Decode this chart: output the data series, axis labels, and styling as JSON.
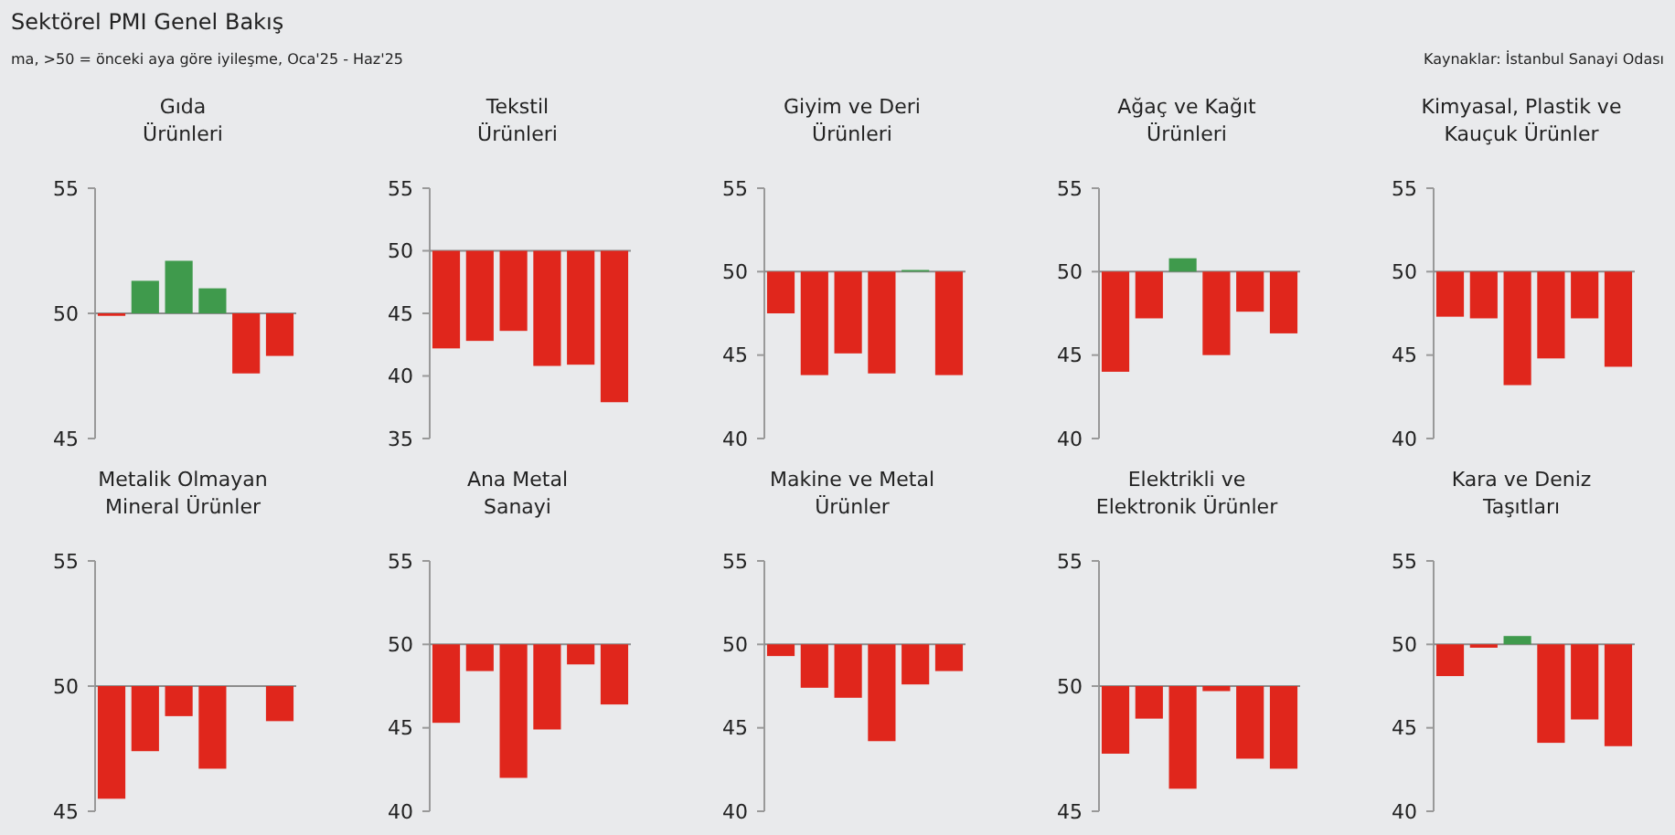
{
  "chart_data": [
    {
      "type": "other",
      "title": "Sektörel PMI Genel Bakış",
      "subtitle": "ma, >50 = önceki aya göre iyileşme, Oca'25 - Haz'25",
      "annotations": [
        "Kaynaklar: İstanbul Sanayi Odası"
      ]
    },
    {
      "type": "bar",
      "title": "Gıda\nÜrünleri",
      "categories": [
        null,
        null,
        null,
        null,
        null,
        null
      ],
      "base": [
        50,
        50,
        50,
        50,
        50,
        50
      ],
      "values": [
        -0.1,
        1.3,
        2.1,
        1.0,
        -2.4,
        -1.7
      ],
      "colors": [
        "#e0261c",
        "#3f9a4c",
        "#3f9a4c",
        "#3f9a4c",
        "#e0261c",
        "#e0261c"
      ],
      "ylim": [
        45,
        55
      ],
      "yticks": [
        45,
        50,
        55
      ],
      "ref_lines": [
        {
          "axis": "y",
          "value": 50,
          "color": "#8c8c8c"
        }
      ]
    },
    {
      "type": "bar",
      "title": "Tekstil\nÜrünleri",
      "categories": [
        null,
        null,
        null,
        null,
        null,
        null
      ],
      "base": [
        50,
        50,
        50,
        50,
        50,
        50
      ],
      "values": [
        -7.8,
        -7.2,
        -6.4,
        -9.2,
        -9.1,
        -12.1
      ],
      "colors": [
        "#e0261c",
        "#e0261c",
        "#e0261c",
        "#e0261c",
        "#e0261c",
        "#e0261c"
      ],
      "ylim": [
        35,
        55
      ],
      "yticks": [
        35,
        40,
        45,
        50,
        55
      ],
      "ref_lines": [
        {
          "axis": "y",
          "value": 50,
          "color": "#8c8c8c"
        }
      ]
    },
    {
      "type": "bar",
      "title": "Giyim ve Deri\nÜrünleri",
      "categories": [
        null,
        null,
        null,
        null,
        null,
        null
      ],
      "base": [
        50,
        50,
        50,
        50,
        50,
        50
      ],
      "values": [
        -2.5,
        -6.2,
        -4.9,
        -6.1,
        0.1,
        -6.2
      ],
      "colors": [
        "#e0261c",
        "#e0261c",
        "#e0261c",
        "#e0261c",
        "#3f9a4c",
        "#e0261c"
      ],
      "ylim": [
        40,
        55
      ],
      "yticks": [
        40,
        45,
        50,
        55
      ],
      "ref_lines": [
        {
          "axis": "y",
          "value": 50,
          "color": "#8c8c8c"
        }
      ]
    },
    {
      "type": "bar",
      "title": "Ağaç ve Kağıt\nÜrünleri",
      "categories": [
        null,
        null,
        null,
        null,
        null,
        null
      ],
      "base": [
        50,
        50,
        50,
        50,
        50,
        50
      ],
      "values": [
        -6.0,
        -2.8,
        0.8,
        -5.0,
        -2.4,
        -3.7
      ],
      "colors": [
        "#e0261c",
        "#e0261c",
        "#3f9a4c",
        "#e0261c",
        "#e0261c",
        "#e0261c"
      ],
      "ylim": [
        40,
        55
      ],
      "yticks": [
        40,
        45,
        50,
        55
      ],
      "ref_lines": [
        {
          "axis": "y",
          "value": 50,
          "color": "#8c8c8c"
        }
      ]
    },
    {
      "type": "bar",
      "title": "Kimyasal, Plastik ve\nKauçuk Ürünler",
      "categories": [
        null,
        null,
        null,
        null,
        null,
        null
      ],
      "base": [
        50,
        50,
        50,
        50,
        50,
        50
      ],
      "values": [
        -2.7,
        -2.8,
        -6.8,
        -5.2,
        -2.8,
        -5.7
      ],
      "colors": [
        "#e0261c",
        "#e0261c",
        "#e0261c",
        "#e0261c",
        "#e0261c",
        "#e0261c"
      ],
      "ylim": [
        40,
        55
      ],
      "yticks": [
        40,
        45,
        50,
        55
      ],
      "ref_lines": [
        {
          "axis": "y",
          "value": 50,
          "color": "#8c8c8c"
        }
      ]
    },
    {
      "type": "bar",
      "title": "Metalik Olmayan\nMineral Ürünler",
      "categories": [
        null,
        null,
        null,
        null,
        null,
        null
      ],
      "base": [
        50,
        50,
        50,
        50,
        null,
        50
      ],
      "values": [
        -4.5,
        -2.6,
        -1.2,
        -3.3,
        null,
        -1.4
      ],
      "colors": [
        "#e0261c",
        "#e0261c",
        "#e0261c",
        "#e0261c",
        null,
        "#e0261c"
      ],
      "ylim": [
        45,
        55
      ],
      "yticks": [
        45,
        50,
        55
      ],
      "ref_lines": [
        {
          "axis": "y",
          "value": 50,
          "color": "#8c8c8c"
        }
      ]
    },
    {
      "type": "bar",
      "title": "Ana Metal\nSanayi",
      "categories": [
        null,
        null,
        null,
        null,
        null,
        null
      ],
      "base": [
        50,
        50,
        50,
        50,
        50,
        50
      ],
      "values": [
        -4.7,
        -1.6,
        -8.0,
        -5.1,
        -1.2,
        -3.6
      ],
      "colors": [
        "#e0261c",
        "#e0261c",
        "#e0261c",
        "#e0261c",
        "#e0261c",
        "#e0261c"
      ],
      "ylim": [
        40,
        55
      ],
      "yticks": [
        40,
        45,
        50,
        55
      ],
      "ref_lines": [
        {
          "axis": "y",
          "value": 50,
          "color": "#8c8c8c"
        }
      ]
    },
    {
      "type": "bar",
      "title": "Makine ve Metal\nÜrünler",
      "categories": [
        null,
        null,
        null,
        null,
        null,
        null
      ],
      "base": [
        50,
        50,
        50,
        50,
        50,
        50
      ],
      "values": [
        -0.7,
        -2.6,
        -3.2,
        -5.8,
        -2.4,
        -1.6
      ],
      "colors": [
        "#e0261c",
        "#e0261c",
        "#e0261c",
        "#e0261c",
        "#e0261c",
        "#e0261c"
      ],
      "ylim": [
        40,
        55
      ],
      "yticks": [
        40,
        45,
        50,
        55
      ],
      "ref_lines": [
        {
          "axis": "y",
          "value": 50,
          "color": "#8c8c8c"
        }
      ]
    },
    {
      "type": "bar",
      "title": "Elektrikli ve\nElektronik Ürünler",
      "categories": [
        null,
        null,
        null,
        null,
        null,
        null
      ],
      "base": [
        50,
        50,
        50,
        50,
        50,
        50
      ],
      "values": [
        -2.7,
        -1.3,
        -4.1,
        -0.2,
        -2.9,
        -3.3
      ],
      "colors": [
        "#e0261c",
        "#e0261c",
        "#e0261c",
        "#e0261c",
        "#e0261c",
        "#e0261c"
      ],
      "ylim": [
        45,
        55
      ],
      "yticks": [
        45,
        50,
        55
      ],
      "ref_lines": [
        {
          "axis": "y",
          "value": 50,
          "color": "#8c8c8c"
        }
      ]
    },
    {
      "type": "bar",
      "title": "Kara ve Deniz\nTaşıtları",
      "categories": [
        null,
        null,
        null,
        null,
        null,
        null
      ],
      "base": [
        50,
        50,
        50,
        50,
        50,
        50
      ],
      "values": [
        -1.9,
        -0.2,
        0.5,
        -5.9,
        -4.5,
        -6.1
      ],
      "colors": [
        "#e0261c",
        "#e0261c",
        "#3f9a4c",
        "#e0261c",
        "#e0261c",
        "#e0261c"
      ],
      "ylim": [
        40,
        55
      ],
      "yticks": [
        40,
        45,
        50,
        55
      ],
      "ref_lines": [
        {
          "axis": "y",
          "value": 50,
          "color": "#8c8c8c"
        }
      ]
    }
  ]
}
